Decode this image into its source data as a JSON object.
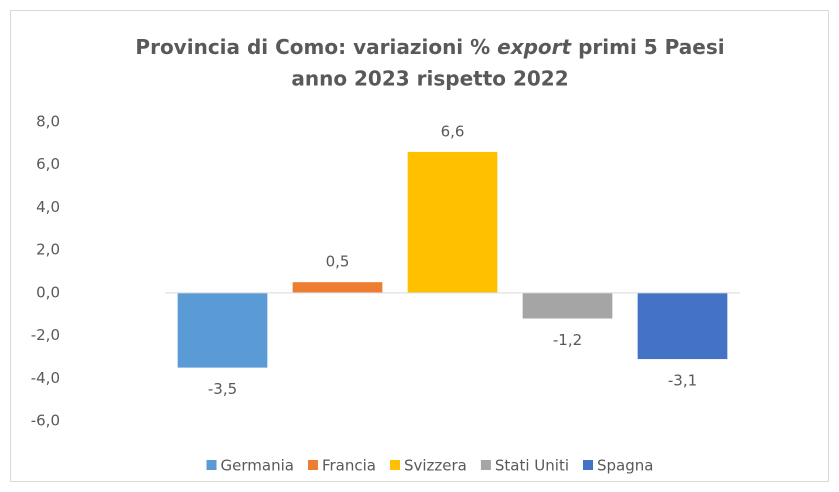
{
  "chart_data": {
    "type": "bar",
    "title_lines": [
      [
        "Provincia di Como: variazioni %",
        "export",
        "primi 5 Paesi"
      ],
      [
        "anno 2023 rispetto 2022"
      ]
    ],
    "series": [
      {
        "name": "Germania",
        "color": "#5b9bd5",
        "values": [
          -3.5
        ],
        "value_labels": [
          "-3,5"
        ]
      },
      {
        "name": "Francia",
        "color": "#ed7d31",
        "values": [
          0.5
        ],
        "value_labels": [
          "0,5"
        ]
      },
      {
        "name": "Svizzera",
        "color": "#ffc000",
        "values": [
          6.6
        ],
        "value_labels": [
          "6,6"
        ]
      },
      {
        "name": "Stati Uniti",
        "color": "#a5a5a5",
        "values": [
          -1.2
        ],
        "value_labels": [
          "-1,2"
        ]
      },
      {
        "name": "Spagna",
        "color": "#4472c4",
        "values": [
          -3.1
        ],
        "value_labels": [
          "-3,1"
        ]
      }
    ],
    "ylim": [
      -6,
      8
    ],
    "yticks": [
      {
        "value": -6,
        "label": "-6,0"
      },
      {
        "value": -4,
        "label": "-4,0"
      },
      {
        "value": -2,
        "label": "-2,0"
      },
      {
        "value": 0,
        "label": "0,0"
      },
      {
        "value": 2,
        "label": "2,0"
      },
      {
        "value": 4,
        "label": "4,0"
      },
      {
        "value": 6,
        "label": "6,0"
      },
      {
        "value": 8,
        "label": "8,0"
      }
    ],
    "grid": false,
    "legend": "bottom"
  }
}
